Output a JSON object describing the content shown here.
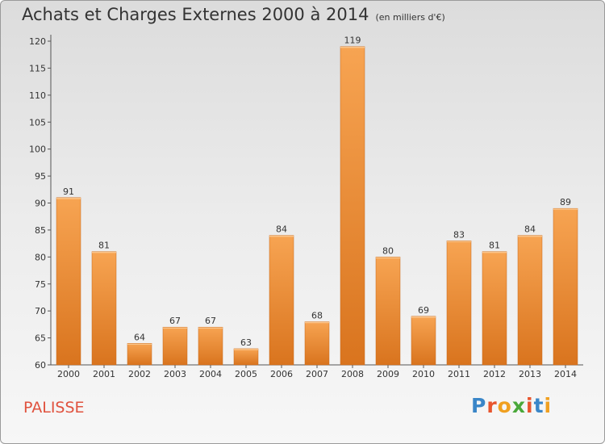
{
  "header": {
    "title": "Achats et Charges Externes 2000 à 2014",
    "subtitle": "(en milliers d'€)"
  },
  "footer": {
    "commune": "PALISSE",
    "logo_letters": [
      "P",
      "r",
      "o",
      "x",
      "i",
      "t",
      "i"
    ],
    "logo_colors": [
      "#3a86c8",
      "#e8552e",
      "#f0a020",
      "#4aa83a",
      "#e8552e",
      "#3a86c8",
      "#f0a020"
    ]
  },
  "chart_data": {
    "type": "bar",
    "title": "Achats et Charges Externes 2000 à 2014",
    "subtitle": "(en milliers d'€)",
    "xlabel": "",
    "ylabel": "",
    "categories": [
      "2000",
      "2001",
      "2002",
      "2003",
      "2004",
      "2005",
      "2006",
      "2007",
      "2008",
      "2009",
      "2010",
      "2011",
      "2012",
      "2013",
      "2014"
    ],
    "values": [
      91,
      81,
      64,
      67,
      67,
      63,
      84,
      68,
      119,
      80,
      69,
      83,
      81,
      84,
      89
    ],
    "data_labels": [
      "91",
      "81",
      "64",
      "67",
      "67",
      "63",
      "84",
      "68",
      "119",
      "80",
      "69",
      "83",
      "81",
      "84",
      "89"
    ],
    "ylim": [
      60,
      120
    ],
    "yticks": [
      60,
      65,
      70,
      75,
      80,
      85,
      90,
      95,
      100,
      105,
      110,
      115,
      120
    ],
    "ytick_labels": [
      "60",
      "65",
      "70",
      "75",
      "80",
      "85",
      "90",
      "95",
      "100",
      "105",
      "110",
      "115",
      "120"
    ],
    "grid": false,
    "bar_color": "#f0913a"
  }
}
